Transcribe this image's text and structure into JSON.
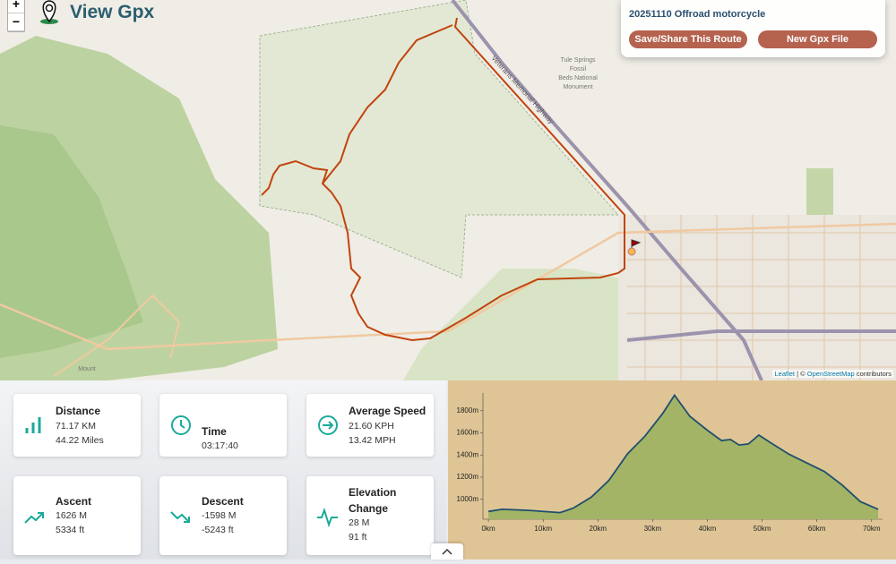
{
  "header": {
    "title": "View Gpx",
    "zoom_in": "+",
    "zoom_out": "−"
  },
  "route_panel": {
    "name": "20251110 Offroad motorcycle",
    "save_button": "Save/Share This Route",
    "new_button": "New Gpx File"
  },
  "map": {
    "labels": [
      "Veterans Memorial Highway",
      "Tule Springs",
      "Fossil",
      "Beds National",
      "Monument",
      "Mount"
    ],
    "attribution": {
      "leaflet": "Leaflet",
      "separator": "| ©",
      "osm": "OpenStreetMap",
      "contributors": "contributors"
    }
  },
  "stats": [
    {
      "label": "Distance",
      "line1": "71.17 KM",
      "line2": "44.22 Miles"
    },
    {
      "label": "Time",
      "line1": "03:17:40"
    },
    {
      "label": "Average Speed",
      "line1": "21.60 KPH",
      "line2": "13.42 MPH"
    },
    {
      "label": "Ascent",
      "line1": "1626 M",
      "line2": "5334 ft"
    },
    {
      "label": "Descent",
      "line1": "-1598 M",
      "line2": "-5243 ft"
    },
    {
      "label": "Elevation Change",
      "line1": "28 M",
      "line2": "91 ft"
    }
  ],
  "elevation_chart": {
    "type": "line",
    "color": "#1f4e6e",
    "fill": "#a3b466",
    "x": [
      0,
      2.5,
      7.4,
      13.1,
      15.5,
      18.8,
      22,
      25.4,
      28.6,
      31.9,
      34,
      36.8,
      40.1,
      42.6,
      44.2,
      45.8,
      47.5,
      49.4,
      51.6,
      54.8,
      58.1,
      61.4,
      64.6,
      67.9,
      71.2
    ],
    "values": [
      890,
      910,
      900,
      880,
      920,
      1020,
      1170,
      1410,
      1570,
      1780,
      1940,
      1750,
      1620,
      1530,
      1540,
      1490,
      1500,
      1580,
      1510,
      1410,
      1330,
      1250,
      1130,
      980,
      910
    ],
    "xlim": [
      -1,
      72
    ],
    "ylim": [
      820,
      1960
    ],
    "xticks": [
      {
        "value": 0,
        "label": "0km"
      },
      {
        "value": 10,
        "label": "10km"
      },
      {
        "value": 20,
        "label": "20km"
      },
      {
        "value": 30,
        "label": "30km"
      },
      {
        "value": 40,
        "label": "40km"
      },
      {
        "value": 50,
        "label": "50km"
      },
      {
        "value": 60,
        "label": "60km"
      },
      {
        "value": 70,
        "label": "70km"
      }
    ],
    "yticks": [
      {
        "value": 1000,
        "label": "1000m"
      },
      {
        "value": 1200,
        "label": "1200m"
      },
      {
        "value": 1400,
        "label": "1400m"
      },
      {
        "value": 1600,
        "label": "1600m"
      },
      {
        "value": 1800,
        "label": "1800m"
      }
    ]
  }
}
